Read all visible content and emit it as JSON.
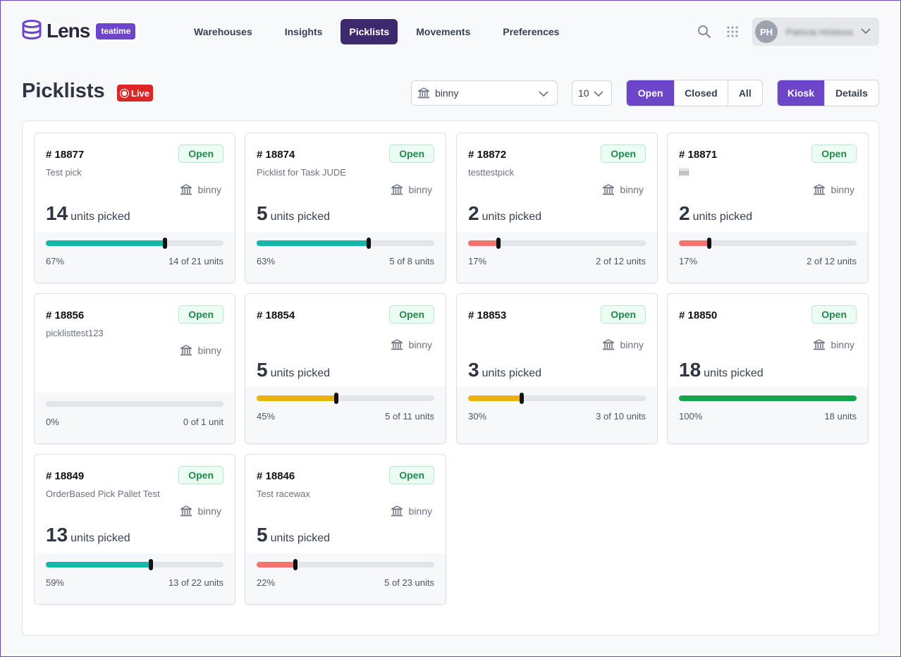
{
  "header": {
    "logo_text": "Lens",
    "tenant": "teatime",
    "nav": [
      {
        "label": "Warehouses",
        "active": false
      },
      {
        "label": "Insights",
        "active": false
      },
      {
        "label": "Picklists",
        "active": true
      },
      {
        "label": "Movements",
        "active": false
      },
      {
        "label": "Preferences",
        "active": false
      }
    ],
    "user": {
      "initials": "PH",
      "name": "Patricia Hristova"
    }
  },
  "toolbar": {
    "title": "Picklists",
    "live_label": "Live",
    "warehouse_select": "binny",
    "page_size": "10",
    "status_filter": [
      {
        "label": "Open",
        "active": true
      },
      {
        "label": "Closed",
        "active": false
      },
      {
        "label": "All",
        "active": false
      }
    ],
    "view_mode": [
      {
        "label": "Kiosk",
        "active": true
      },
      {
        "label": "Details",
        "active": false
      }
    ]
  },
  "units_suffix": "units picked",
  "cards": [
    {
      "id": "# 18877",
      "status": "Open",
      "desc": "Test pick",
      "warehouse": "binny",
      "units": "14",
      "progress": 0.67,
      "color": "#14b8a6",
      "pct": "67%",
      "frac": "14 of 21 units"
    },
    {
      "id": "# 18874",
      "status": "Open",
      "desc": "Picklist for Task JUDE",
      "warehouse": "binny",
      "units": "5",
      "progress": 0.63,
      "color": "#14b8a6",
      "pct": "63%",
      "frac": "5 of 8 units"
    },
    {
      "id": "# 18872",
      "status": "Open",
      "desc": "testtestpick",
      "warehouse": "binny",
      "units": "2",
      "progress": 0.17,
      "color": "#f87171",
      "pct": "17%",
      "frac": "2 of 12 units"
    },
    {
      "id": "# 18871",
      "status": "Open",
      "desc": "iiiii",
      "warehouse": "binny",
      "units": "2",
      "progress": 0.17,
      "color": "#f87171",
      "pct": "17%",
      "frac": "2 of 12 units"
    },
    {
      "id": "# 18856",
      "status": "Open",
      "desc": "picklisttest123",
      "warehouse": "binny",
      "units": "",
      "progress": 0,
      "color": "#e2e4ea",
      "pct": "0%",
      "frac": "0 of 1 unit"
    },
    {
      "id": "# 18854",
      "status": "Open",
      "desc": "",
      "warehouse": "binny",
      "units": "5",
      "progress": 0.45,
      "color": "#eab308",
      "pct": "45%",
      "frac": "5 of 11 units"
    },
    {
      "id": "# 18853",
      "status": "Open",
      "desc": "",
      "warehouse": "binny",
      "units": "3",
      "progress": 0.3,
      "color": "#eab308",
      "pct": "30%",
      "frac": "3 of 10 units"
    },
    {
      "id": "# 18850",
      "status": "Open",
      "desc": "",
      "warehouse": "binny",
      "units": "18",
      "progress": 1.0,
      "color": "#16a34a",
      "pct": "100%",
      "frac": "18 units"
    },
    {
      "id": "# 18849",
      "status": "Open",
      "desc": "OrderBased Pick Pallet Test",
      "warehouse": "binny",
      "units": "13",
      "progress": 0.59,
      "color": "#14b8a6",
      "pct": "59%",
      "frac": "13 of 22 units"
    },
    {
      "id": "# 18846",
      "status": "Open",
      "desc": "Test racewax",
      "warehouse": "binny",
      "units": "5",
      "progress": 0.22,
      "color": "#f87171",
      "pct": "22%",
      "frac": "5 of 23 units"
    }
  ]
}
